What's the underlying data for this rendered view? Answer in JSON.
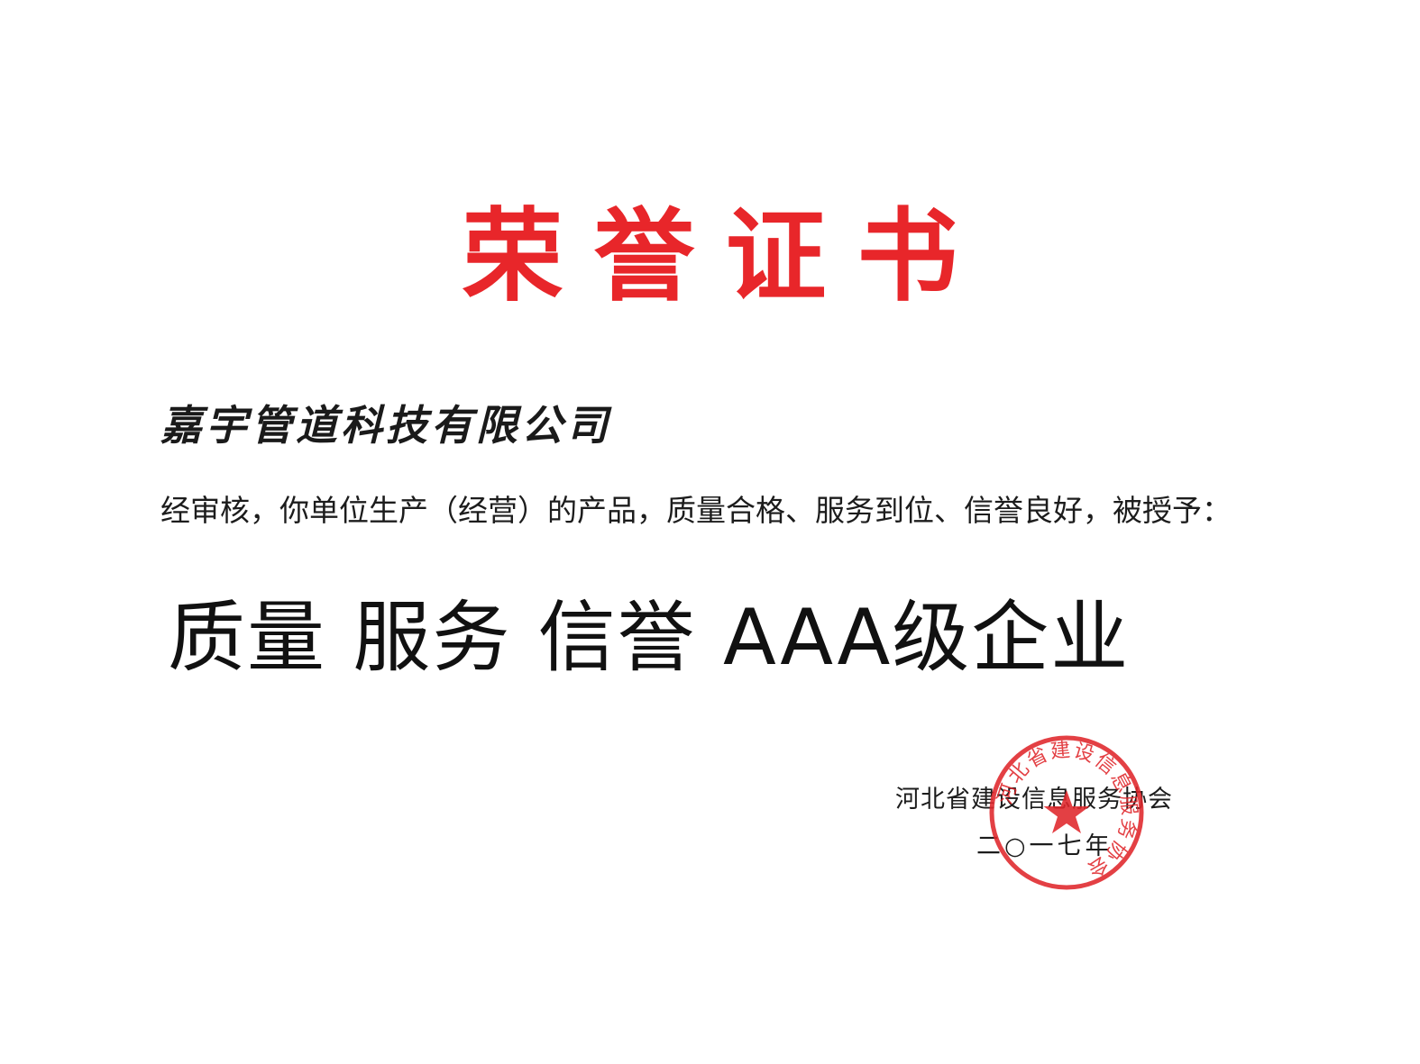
{
  "certificate": {
    "title": "荣誉证书",
    "company_name": "嘉宇管道科技有限公司",
    "statement": "经审核，你单位生产（经营）的产品，质量合格、服务到位、信誉良好，被授予：",
    "award": "质量 服务 信誉 AAA级企业",
    "issuer": "河北省建设信息服务协会",
    "date": "二○一七年"
  },
  "seal": {
    "text": "河北省建设信息服务协会",
    "icon": "red-star-icon"
  },
  "colors": {
    "title": "#e8262a",
    "seal": "#e0262b",
    "text": "#1a1a1a"
  }
}
